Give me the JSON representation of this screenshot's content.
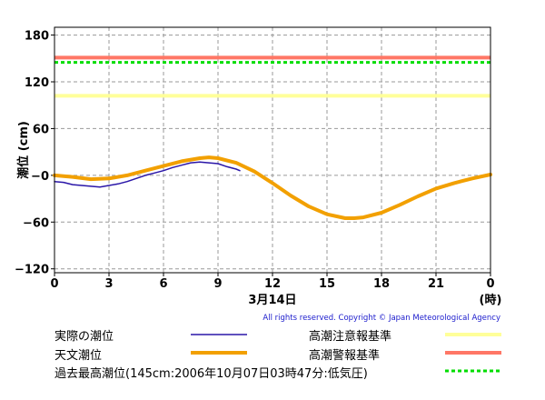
{
  "chart_data": {
    "type": "line",
    "ylabel": "潮位 (cm)",
    "ylim": [
      -125,
      190
    ],
    "xlim": [
      0,
      24
    ],
    "yticks": [
      {
        "value": 180,
        "label": "180"
      },
      {
        "value": 120,
        "label": "120"
      },
      {
        "value": 60,
        "label": "60"
      },
      {
        "value": 0,
        "label": "−0"
      },
      {
        "value": -60,
        "label": "−60"
      },
      {
        "value": -120,
        "label": "−120"
      }
    ],
    "xticks": [
      "0",
      "3",
      "6",
      "9",
      "12",
      "15",
      "18",
      "21",
      "0"
    ],
    "date_label": "3月14日",
    "hour_unit": "(時)",
    "grid": true,
    "reference_lines": [
      {
        "name": "高潮注意報基準",
        "value": 102,
        "color": "#ffff99"
      },
      {
        "name": "高潮警報基準",
        "value": 151,
        "color": "#ff7766"
      },
      {
        "name": "過去最高潮位(145cm:2006年10月07日03時47分:低気圧)",
        "value": 145,
        "color": "#00dd00",
        "style": "dotted"
      }
    ],
    "series": [
      {
        "name": "天文潮位",
        "color": "#f2a000",
        "x": [
          0,
          1,
          2,
          3,
          4,
          5,
          6,
          7,
          8,
          8.5,
          9,
          10,
          11,
          12,
          13,
          14,
          15,
          16,
          16.5,
          17,
          18,
          19,
          20,
          21,
          22,
          23,
          24
        ],
        "y": [
          0,
          -2,
          -5,
          -4,
          0,
          6,
          12,
          18,
          22,
          23,
          22,
          16,
          5,
          -10,
          -26,
          -40,
          -50,
          -55,
          -55,
          -54,
          -48,
          -38,
          -27,
          -17,
          -10,
          -4,
          1
        ]
      },
      {
        "name": "実際の潮位",
        "color": "#2a16a8",
        "x": [
          0,
          0.5,
          1,
          1.5,
          2,
          2.5,
          3,
          3.5,
          4,
          4.5,
          5,
          5.5,
          6,
          6.5,
          7,
          7.5,
          8,
          8.5,
          9,
          9.5,
          10,
          10.2
        ],
        "y": [
          -8,
          -9,
          -12,
          -13,
          -14,
          -15,
          -13,
          -11,
          -8,
          -4,
          0,
          3,
          6,
          10,
          13,
          16,
          17,
          16,
          15,
          11,
          8,
          6
        ]
      }
    ]
  },
  "copyright": "All rights reserved. Copyright © Japan Meteorological Agency",
  "legend": [
    {
      "label": "実際の潮位",
      "color": "#2a16a8",
      "style": "thin"
    },
    {
      "label": "天文潮位",
      "color": "#f2a000",
      "style": "thick"
    },
    {
      "label": "高潮注意報基準",
      "color": "#ffff99",
      "style": "thick"
    },
    {
      "label": "高潮警報基準",
      "color": "#ff7766",
      "style": "thick"
    },
    {
      "label": "過去最高潮位(145cm:2006年10月07日03時47分:低気圧)",
      "color": "#00dd00",
      "style": "dotted"
    }
  ]
}
